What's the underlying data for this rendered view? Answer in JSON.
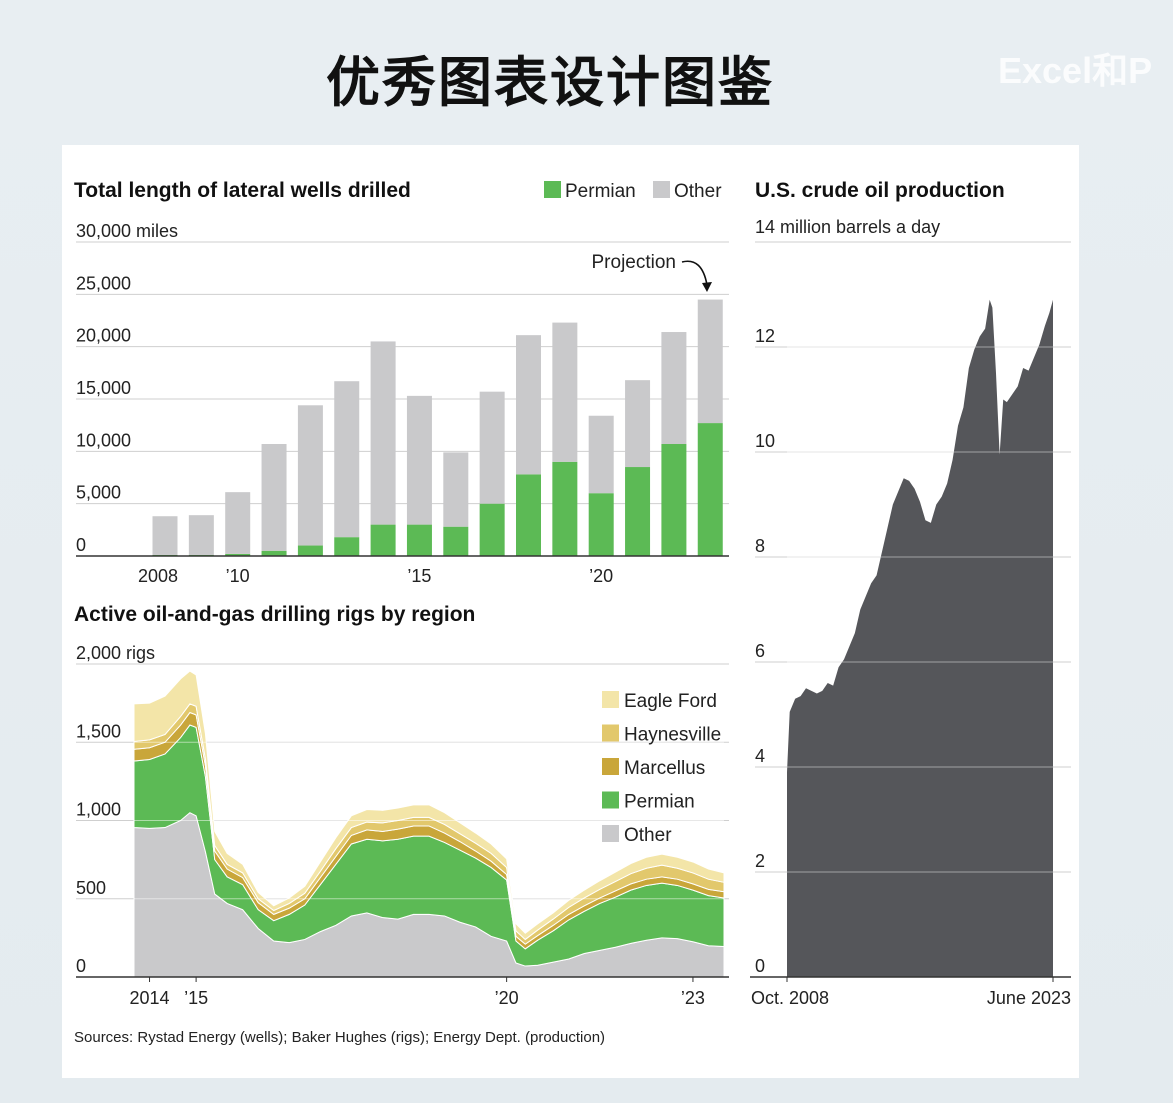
{
  "page": {
    "heading": "优秀图表设计图鉴",
    "watermark": "Excel和P",
    "sources": "Sources: Rystad Energy (wells); Baker Hughes (rigs); Energy Dept. (production)"
  },
  "colors": {
    "permian": "#5cba55",
    "other": "#c9c9cb",
    "marcellus": "#c9a63a",
    "haynesville": "#e2c86c",
    "eagle_ford": "#f3e5a8",
    "production": "#55565a"
  },
  "chart_data": [
    {
      "type": "bar",
      "title": "Total length of lateral wells drilled",
      "unit_label": "30,000 miles",
      "x": [
        2008,
        2009,
        2010,
        2011,
        2012,
        2013,
        2014,
        2015,
        2016,
        2017,
        2018,
        2019,
        2020,
        2021,
        2022,
        2023
      ],
      "x_tick_labels": [
        "2008",
        "’10",
        "’15",
        "’20"
      ],
      "x_tick_years": [
        2008,
        2010,
        2015,
        2020
      ],
      "y_tick_labels": [
        "0",
        "5,000",
        "10,000",
        "15,000",
        "20,000",
        "25,000"
      ],
      "y_ticks": [
        0,
        5000,
        10000,
        15000,
        20000,
        25000
      ],
      "ylim": [
        0,
        30000
      ],
      "series": [
        {
          "name": "Permian",
          "values": [
            100,
            100,
            200,
            500,
            1000,
            1800,
            3000,
            3000,
            2800,
            5000,
            7800,
            9000,
            6000,
            8500,
            10700,
            12700
          ]
        },
        {
          "name": "Other",
          "values": [
            3700,
            3800,
            5900,
            10200,
            13400,
            14900,
            17500,
            12300,
            7100,
            10700,
            13300,
            13300,
            7400,
            8300,
            10700,
            11800
          ]
        }
      ],
      "annotation": "Projection",
      "legend": "top-right",
      "grid": true
    },
    {
      "type": "area",
      "stacked": true,
      "title": "Active oil-and-gas drilling rigs by region",
      "unit_label": "2,000 rigs",
      "x": [
        2014.0,
        2014.25,
        2014.5,
        2014.75,
        2014.9,
        2015.0,
        2015.15,
        2015.3,
        2015.5,
        2015.75,
        2016.0,
        2016.25,
        2016.5,
        2016.75,
        2017.0,
        2017.25,
        2017.5,
        2017.75,
        2018.0,
        2018.25,
        2018.5,
        2018.75,
        2019.0,
        2019.25,
        2019.5,
        2019.75,
        2020.0,
        2020.15,
        2020.3,
        2020.5,
        2020.75,
        2021.0,
        2021.25,
        2021.5,
        2021.75,
        2022.0,
        2022.25,
        2022.5,
        2022.75,
        2023.0,
        2023.25,
        2023.5
      ],
      "x_tick_labels": [
        "2014",
        "’15",
        "’20",
        "’23"
      ],
      "x_tick_years": [
        2014.25,
        2015.0,
        2020.0,
        2023.0
      ],
      "y_tick_labels": [
        "0",
        "500",
        "1,000",
        "1,500"
      ],
      "y_ticks": [
        0,
        500,
        1000,
        1500
      ],
      "ylim": [
        0,
        2000
      ],
      "series": [
        {
          "name": "Other",
          "values": [
            955,
            950,
            955,
            1000,
            1050,
            1030,
            800,
            530,
            470,
            430,
            310,
            230,
            220,
            240,
            290,
            330,
            390,
            410,
            380,
            370,
            400,
            400,
            390,
            350,
            320,
            260,
            230,
            90,
            70,
            75,
            95,
            115,
            150,
            170,
            190,
            215,
            235,
            250,
            245,
            225,
            200,
            195
          ]
        },
        {
          "name": "Permian",
          "values": [
            425,
            440,
            470,
            530,
            560,
            565,
            480,
            220,
            170,
            160,
            120,
            130,
            180,
            220,
            300,
            390,
            460,
            470,
            490,
            510,
            500,
            500,
            470,
            460,
            440,
            440,
            390,
            140,
            110,
            160,
            200,
            250,
            270,
            300,
            320,
            340,
            350,
            350,
            340,
            330,
            320,
            310
          ]
        },
        {
          "name": "Marcellus",
          "values": [
            75,
            75,
            75,
            80,
            80,
            80,
            70,
            55,
            50,
            45,
            45,
            40,
            40,
            40,
            45,
            50,
            55,
            60,
            60,
            65,
            65,
            65,
            60,
            55,
            45,
            40,
            35,
            30,
            30,
            30,
            35,
            35,
            35,
            35,
            40,
            40,
            40,
            40,
            40,
            40,
            40,
            40
          ]
        },
        {
          "name": "Haynesville",
          "values": [
            50,
            50,
            50,
            55,
            55,
            55,
            45,
            35,
            30,
            30,
            25,
            25,
            30,
            35,
            40,
            50,
            50,
            50,
            55,
            55,
            55,
            55,
            55,
            50,
            50,
            50,
            45,
            35,
            30,
            35,
            40,
            45,
            50,
            55,
            60,
            65,
            70,
            75,
            70,
            70,
            65,
            60
          ]
        },
        {
          "name": "Eagle Ford",
          "values": [
            240,
            235,
            245,
            240,
            210,
            200,
            160,
            90,
            70,
            55,
            40,
            30,
            35,
            45,
            60,
            70,
            75,
            80,
            80,
            80,
            80,
            80,
            75,
            70,
            65,
            60,
            55,
            45,
            40,
            40,
            40,
            45,
            50,
            55,
            60,
            65,
            70,
            70,
            70,
            70,
            65,
            60
          ]
        }
      ],
      "legend": "top-right",
      "grid": true
    },
    {
      "type": "area",
      "title": "U.S. crude oil production",
      "unit_label": "14 million barrels a day",
      "x": [
        2008.75,
        2008.9,
        2009.2,
        2009.5,
        2009.8,
        2010.1,
        2010.4,
        2010.7,
        2011.0,
        2011.3,
        2011.6,
        2011.9,
        2012.2,
        2012.5,
        2012.8,
        2013.1,
        2013.4,
        2013.7,
        2014.0,
        2014.3,
        2014.6,
        2014.9,
        2015.2,
        2015.5,
        2015.8,
        2016.1,
        2016.4,
        2016.7,
        2017.0,
        2017.3,
        2017.6,
        2017.9,
        2018.2,
        2018.5,
        2018.8,
        2019.1,
        2019.4,
        2019.7,
        2019.95,
        2020.1,
        2020.3,
        2020.5,
        2020.7,
        2020.9,
        2021.2,
        2021.5,
        2021.8,
        2022.1,
        2022.4,
        2022.7,
        2023.0,
        2023.25,
        2023.45
      ],
      "x_tick_labels": [
        "Oct. 2008",
        "June 2023"
      ],
      "y_tick_labels": [
        "0",
        "2",
        "4",
        "6",
        "8",
        "10",
        "12"
      ],
      "y_ticks": [
        0,
        2,
        4,
        6,
        8,
        10,
        12
      ],
      "ylim": [
        0,
        14
      ],
      "series": [
        {
          "name": "",
          "values": [
            3.9,
            5.1,
            5.3,
            5.4,
            5.5,
            5.5,
            5.4,
            5.5,
            5.6,
            5.6,
            5.9,
            6.1,
            6.3,
            6.6,
            7.0,
            7.3,
            7.5,
            7.7,
            8.1,
            8.6,
            9.0,
            9.3,
            9.5,
            9.5,
            9.3,
            9.1,
            8.7,
            8.7,
            9.0,
            9.2,
            9.4,
            9.9,
            10.5,
            10.9,
            11.6,
            12.0,
            12.2,
            12.4,
            12.9,
            12.8,
            11.5,
            10.0,
            11.0,
            11.0,
            11.1,
            11.3,
            11.6,
            11.6,
            11.8,
            12.1,
            12.4,
            12.7,
            12.9
          ]
        }
      ],
      "grid": true
    }
  ]
}
